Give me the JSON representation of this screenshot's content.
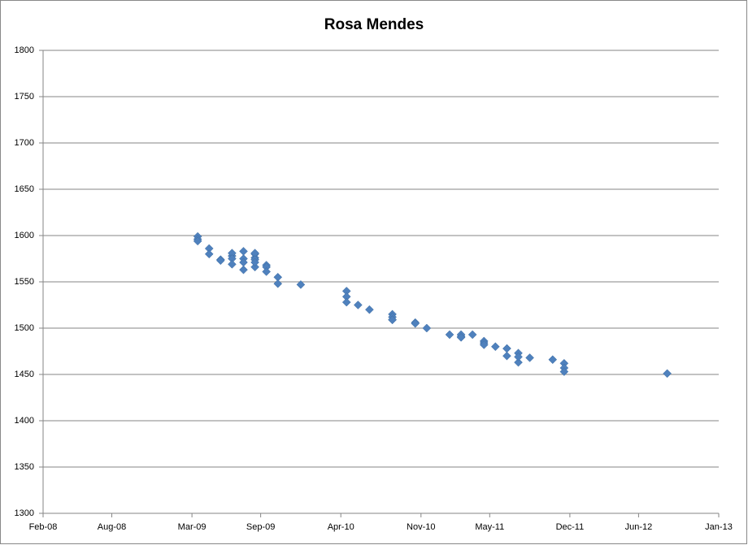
{
  "chart_data": {
    "type": "scatter",
    "title": "Rosa Mendes",
    "x": [
      "2009-03",
      "2009-03",
      "2009-03",
      "2009-04",
      "2009-04",
      "2009-05",
      "2009-05",
      "2009-06",
      "2009-06",
      "2009-06",
      "2009-06",
      "2009-07",
      "2009-07",
      "2009-07",
      "2009-07",
      "2009-08",
      "2009-08",
      "2009-08",
      "2009-08",
      "2009-08",
      "2009-08",
      "2009-09",
      "2009-09",
      "2009-09",
      "2009-10",
      "2009-10",
      "2009-12",
      "2010-04",
      "2010-04",
      "2010-04",
      "2010-05",
      "2010-06",
      "2010-08",
      "2010-08",
      "2010-08",
      "2010-08",
      "2010-10",
      "2010-10",
      "2010-11",
      "2011-01",
      "2011-02",
      "2011-02",
      "2011-02",
      "2011-03",
      "2011-04",
      "2011-04",
      "2011-04",
      "2011-05",
      "2011-06",
      "2011-06",
      "2011-06",
      "2011-07",
      "2011-07",
      "2011-07",
      "2011-08",
      "2011-10",
      "2011-11",
      "2011-11",
      "2011-11",
      "2012-08"
    ],
    "series": [
      {
        "color": "#4f81bd",
        "values": [
          1599,
          1596,
          1594,
          1586,
          1580,
          1574,
          1573,
          1578,
          1581,
          1575,
          1569,
          1563,
          1575,
          1583,
          1571,
          1566,
          1576,
          1580,
          1581,
          1574,
          1571,
          1568,
          1566,
          1561,
          1555,
          1548,
          1547,
          1540,
          1534,
          1528,
          1525,
          1520,
          1515,
          1512,
          1509,
          1509,
          1506,
          1505,
          1500,
          1493,
          1491,
          1493,
          1490,
          1493,
          1486,
          1484,
          1482,
          1480,
          1478,
          1470,
          1478,
          1473,
          1463,
          1469,
          1468,
          1466,
          1462,
          1457,
          1453,
          1451
        ]
      }
    ],
    "xlim": [
      "2008-02",
      "2013-01"
    ],
    "xticks": [
      {
        "value": "2008-02",
        "label": "Feb-08"
      },
      {
        "value": "2008-08",
        "label": "Aug-08"
      },
      {
        "value": "2009-03",
        "label": "Mar-09"
      },
      {
        "value": "2009-09",
        "label": "Sep-09"
      },
      {
        "value": "2010-04",
        "label": "Apr-10"
      },
      {
        "value": "2010-11",
        "label": "Nov-10"
      },
      {
        "value": "2011-05",
        "label": "May-11"
      },
      {
        "value": "2011-12",
        "label": "Dec-11"
      },
      {
        "value": "2012-06",
        "label": "Jun-12"
      },
      {
        "value": "2013-01",
        "label": "Jan-13"
      }
    ],
    "ylim": [
      1300,
      1800
    ],
    "yticks": [
      1300,
      1350,
      1400,
      1450,
      1500,
      1550,
      1600,
      1650,
      1700,
      1750,
      1800
    ],
    "grid": true
  }
}
